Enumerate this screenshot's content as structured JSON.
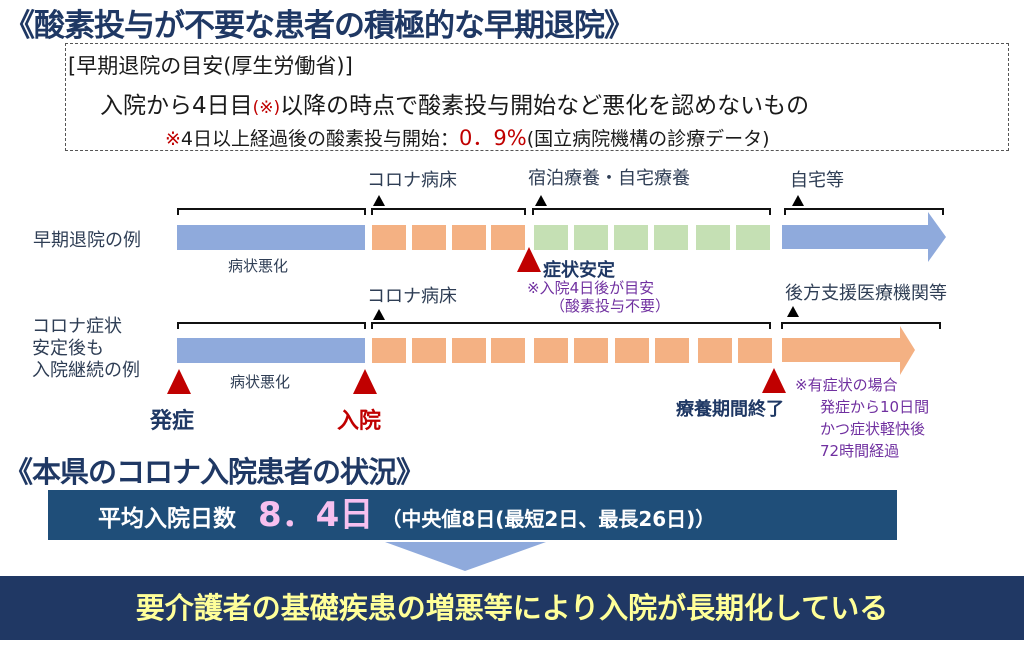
{
  "header": {
    "title": "《酸素投与が不要な患者の積極的な早期退院》",
    "criteria_heading": "[早期退院の目安(厚生労働省)]",
    "criteria_text_before": "入院から4日目",
    "criteria_mark": "(※)",
    "criteria_text_after": "以降の時点で酸素投与開始など悪化を認めないもの",
    "note_mark": "※",
    "note_text": "4日以上経過後の酸素投与開始：",
    "note_value": "0．9%",
    "note_source": "(国立病院機構の診療データ)"
  },
  "diagram": {
    "row1": {
      "label": "早期退院の例",
      "phase_worsening": "病状悪化",
      "phase_hospital": "コロナ病床",
      "phase_hotel_home": "宿泊療養・自宅療養",
      "phase_home": "自宅等",
      "marker_stable": "症状安定",
      "marker_stable_note1": "※入院4日後が目安",
      "marker_stable_note2": "（酸素投与不要）"
    },
    "row2": {
      "label_lines": [
        "コロナ症状",
        "安定後も",
        "入院継続の例"
      ],
      "phase_worsening": "病状悪化",
      "phase_hospital": "コロナ病床",
      "phase_backup": "後方支援医療機関等",
      "marker_onset": "発症",
      "marker_admission": "入院",
      "marker_end": "療養期間終了",
      "end_note_lines": [
        "※有症状の場合",
        "発症から10日間",
        "かつ症状軽快後",
        "72時間経過"
      ]
    },
    "colors": {
      "worsening": "#8faadc",
      "hospital": "#f4b183",
      "recuperation": "#c5e0b4",
      "marker": "#c00000"
    }
  },
  "status": {
    "title": "《本県のコロナ入院患者の状況》",
    "avg_label": "平均入院日数",
    "avg_value": "8．4日",
    "avg_detail": "（中央値8日(最短2日、最長26日)）",
    "conclusion": "要介護者の基礎疾患の増悪等により入院が長期化している"
  }
}
